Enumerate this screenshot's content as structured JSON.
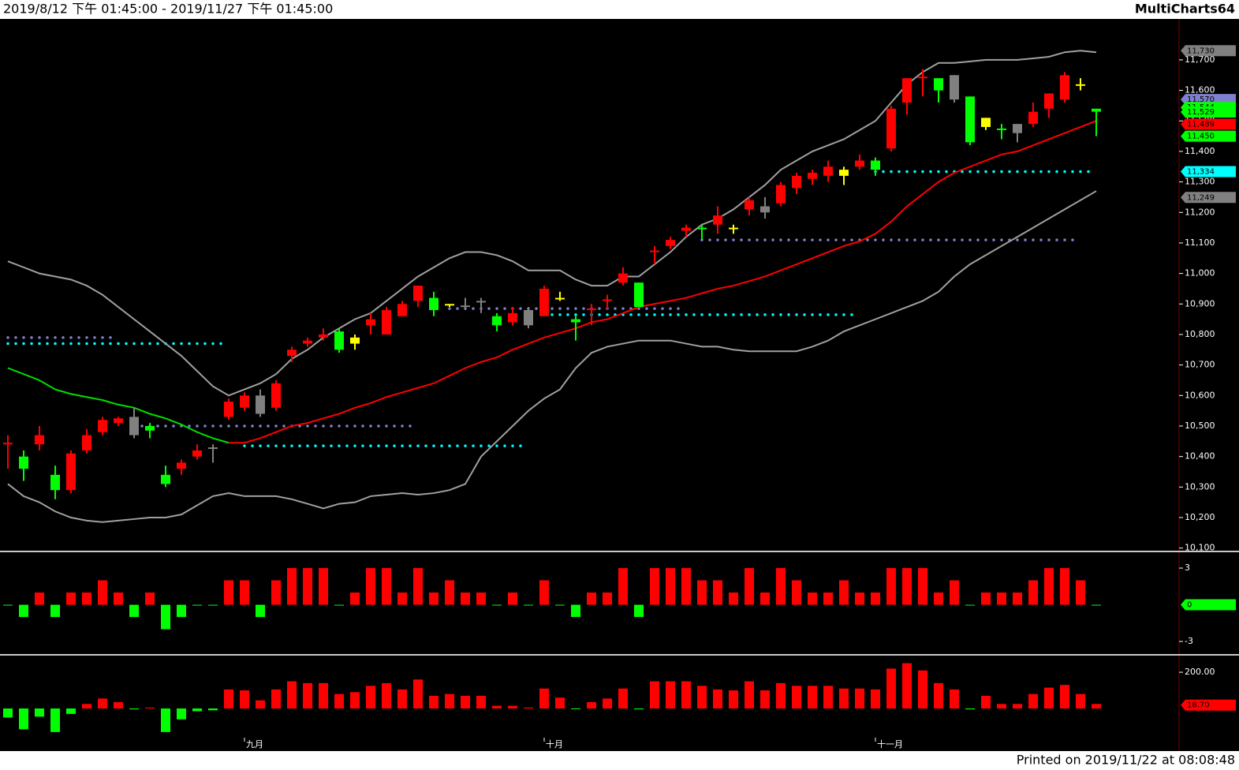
{
  "header": {
    "range": "2019/8/12 下午 01:45:00 - 2019/11/27 下午 01:45:00",
    "app": "MultiCharts64"
  },
  "footer": "Printed on 2019/11/22 at 08:08:48",
  "chart_data": [
    {
      "type": "candlestick",
      "ylim": [
        10094,
        11829
      ],
      "yticks": [
        {
          "value": 10100,
          "label": "10,100"
        },
        {
          "value": 10200,
          "label": "10,200"
        },
        {
          "value": 10300,
          "label": "10,300"
        },
        {
          "value": 10400,
          "label": "10,400"
        },
        {
          "value": 10500,
          "label": "10,500"
        },
        {
          "value": 10600,
          "label": "10,600"
        },
        {
          "value": 10700,
          "label": "10,700"
        },
        {
          "value": 10800,
          "label": "10,800"
        },
        {
          "value": 10900,
          "label": "10,900"
        },
        {
          "value": 11000,
          "label": "11,000"
        },
        {
          "value": 11100,
          "label": "11,100"
        },
        {
          "value": 11200,
          "label": "11,200"
        },
        {
          "value": 11300,
          "label": "11,300"
        },
        {
          "value": 11400,
          "label": "11,400"
        },
        {
          "value": 11500,
          "label": "11,500"
        },
        {
          "value": 11600,
          "label": "11,600"
        },
        {
          "value": 11700,
          "label": "11,700"
        }
      ],
      "open": [
        10440,
        10400,
        10440,
        10340,
        10290,
        10420,
        10480,
        10510,
        10530,
        10500,
        10340,
        10360,
        10400,
        10430,
        10530,
        10560,
        10600,
        10560,
        10730,
        10770,
        10790,
        10810,
        10790,
        10830,
        10800,
        10860,
        10910,
        10920,
        10900,
        10895,
        10910,
        10860,
        10840,
        10880,
        10860,
        10920,
        10850,
        10880,
        10910,
        10970,
        10970,
        11070,
        11090,
        11140,
        11150,
        11160,
        11150,
        11210,
        11220,
        11230,
        11280,
        11310,
        11320,
        11340,
        11350,
        11370,
        11410,
        11560,
        11640,
        11640,
        11650,
        11580,
        11510,
        11475,
        11490,
        11490,
        11540,
        11570,
        11620,
        11540
      ],
      "high": [
        10470,
        10420,
        10500,
        10370,
        10420,
        10490,
        10530,
        10530,
        10560,
        10510,
        10370,
        10390,
        10440,
        10440,
        10590,
        10610,
        10620,
        10650,
        10760,
        10790,
        10820,
        10820,
        10800,
        10870,
        10890,
        10910,
        10960,
        10940,
        10900,
        10920,
        10920,
        10870,
        10890,
        10890,
        10960,
        10940,
        10860,
        10900,
        10930,
        11020,
        10970,
        11090,
        11120,
        11160,
        11160,
        11220,
        11160,
        11250,
        11250,
        11300,
        11330,
        11340,
        11370,
        11350,
        11390,
        11380,
        11550,
        11640,
        11670,
        11640,
        11650,
        11580,
        11510,
        11490,
        11490,
        11560,
        11590,
        11660,
        11640,
        11540
      ],
      "low": [
        10360,
        10320,
        10420,
        10260,
        10280,
        10410,
        10470,
        10500,
        10460,
        10460,
        10300,
        10340,
        10390,
        10380,
        10520,
        10550,
        10530,
        10550,
        10710,
        10760,
        10780,
        10740,
        10750,
        10800,
        10800,
        10860,
        10890,
        10860,
        10890,
        10880,
        10870,
        10810,
        10830,
        10820,
        10860,
        10910,
        10780,
        10830,
        10880,
        10960,
        10890,
        11030,
        11080,
        11120,
        11110,
        11130,
        11130,
        11190,
        11180,
        11220,
        11260,
        11290,
        11300,
        11290,
        11340,
        11320,
        11400,
        11520,
        11580,
        11560,
        11560,
        11420,
        11470,
        11440,
        11430,
        11480,
        11510,
        11560,
        11600,
        11450
      ],
      "close": [
        10445,
        10360,
        10470,
        10290,
        10410,
        10470,
        10520,
        10525,
        10470,
        10485,
        10310,
        10380,
        10420,
        10425,
        10580,
        10600,
        10540,
        10640,
        10750,
        10780,
        10800,
        10750,
        10770,
        10850,
        10880,
        10900,
        10960,
        10880,
        10895,
        10890,
        10905,
        10830,
        10870,
        10830,
        10950,
        10915,
        10840,
        10885,
        10915,
        11000,
        10890,
        11075,
        11110,
        11150,
        11145,
        11190,
        11145,
        11240,
        11200,
        11290,
        11320,
        11330,
        11350,
        11320,
        11370,
        11340,
        11540,
        11640,
        11645,
        11600,
        11570,
        11430,
        11480,
        11470,
        11460,
        11530,
        11590,
        11650,
        11615,
        11530
      ],
      "colors": [
        "#ff0000",
        "#00ff00",
        "#ff0000",
        "#00ff00",
        "#ff0000",
        "#ff0000",
        "#ff0000",
        "#ff0000",
        "#808080",
        "#00ff00",
        "#00ff00",
        "#ff0000",
        "#ff0000",
        "#808080",
        "#ff0000",
        "#ff0000",
        "#808080",
        "#ff0000",
        "#ff0000",
        "#ff0000",
        "#ff0000",
        "#00ff00",
        "#ffff00",
        "#ff0000",
        "#ff0000",
        "#ff0000",
        "#ff0000",
        "#00ff00",
        "#ffff00",
        "#808080",
        "#808080",
        "#00ff00",
        "#ff0000",
        "#808080",
        "#ff0000",
        "#ffff00",
        "#00ff00",
        "#ff0000",
        "#ff0000",
        "#ff0000",
        "#00ff00",
        "#ff0000",
        "#ff0000",
        "#ff0000",
        "#00ff00",
        "#ff0000",
        "#ffff00",
        "#ff0000",
        "#808080",
        "#ff0000",
        "#ff0000",
        "#ff0000",
        "#ff0000",
        "#ffff00",
        "#ff0000",
        "#00ff00",
        "#ff0000",
        "#ff0000",
        "#ff0000",
        "#00ff00",
        "#808080",
        "#00ff00",
        "#ffff00",
        "#00ff00",
        "#808080",
        "#ff0000",
        "#ff0000",
        "#ff0000",
        "#ffff00",
        "#00ff00"
      ],
      "series": [
        {
          "color": "#a0a0a0",
          "values": [
            11040,
            11020,
            11000,
            10990,
            10980,
            10960,
            10930,
            10890,
            10850,
            10810,
            10770,
            10730,
            10680,
            10630,
            10600,
            10620,
            10640,
            10670,
            10720,
            10750,
            10790,
            10820,
            10850,
            10870,
            10910,
            10950,
            10990,
            11020,
            11050,
            11070,
            11070,
            11060,
            11040,
            11010,
            11010,
            11010,
            10980,
            10960,
            10960,
            10990,
            10990,
            11030,
            11070,
            11120,
            11160,
            11180,
            11210,
            11250,
            11290,
            11340,
            11370,
            11400,
            11420,
            11440,
            11470,
            11500,
            11560,
            11620,
            11660,
            11690,
            11690,
            11695,
            11700,
            11700,
            11700,
            11705,
            11710,
            11725,
            11730,
            11725
          ]
        },
        {
          "color": "#a0a0a0",
          "values": [
            10310,
            10270,
            10250,
            10220,
            10200,
            10190,
            10185,
            10190,
            10195,
            10200,
            10200,
            10210,
            10240,
            10270,
            10280,
            10270,
            10270,
            10270,
            10260,
            10245,
            10230,
            10245,
            10250,
            10270,
            10275,
            10280,
            10275,
            10280,
            10290,
            10310,
            10400,
            10450,
            10500,
            10550,
            10590,
            10620,
            10690,
            10740,
            10760,
            10770,
            10780,
            10780,
            10780,
            10770,
            10760,
            10760,
            10750,
            10745,
            10745,
            10745,
            10745,
            10760,
            10780,
            10810,
            10830,
            10850,
            10870,
            10890,
            10910,
            10940,
            10990,
            11030,
            11060,
            11090,
            11120,
            11150,
            11180,
            11210,
            11240,
            11270
          ]
        },
        {
          "color": "#00e000",
          "values": [
            10690,
            10670,
            10650,
            10620,
            10605,
            10595,
            10585,
            10570,
            10560,
            10540,
            10525,
            10505,
            10480,
            10460,
            10445,
            null,
            null,
            null,
            null,
            null,
            null,
            null,
            null,
            null,
            null,
            null,
            null,
            null,
            null,
            null,
            null,
            null,
            null,
            null,
            null,
            null,
            null,
            null,
            null,
            null,
            null,
            null,
            null,
            null,
            null,
            null,
            null,
            null,
            null,
            null,
            null,
            null,
            null,
            null,
            null,
            null,
            null,
            null,
            null,
            null,
            null,
            null,
            null,
            null,
            null,
            null,
            null,
            null,
            null,
            null
          ]
        },
        {
          "color": "#ff0000",
          "values": [
            null,
            null,
            null,
            null,
            null,
            null,
            null,
            null,
            null,
            null,
            null,
            null,
            null,
            null,
            10445,
            10445,
            10460,
            10480,
            10500,
            10510,
            10525,
            10540,
            10560,
            10575,
            10595,
            10610,
            10625,
            10640,
            10665,
            10690,
            10710,
            10725,
            10750,
            10770,
            10790,
            10805,
            10820,
            10840,
            10850,
            10870,
            10890,
            10900,
            10910,
            10920,
            10935,
            10950,
            10960,
            10975,
            10990,
            11010,
            11030,
            11050,
            11070,
            11090,
            11105,
            11130,
            11170,
            11220,
            11260,
            11300,
            11330,
            11350,
            11370,
            11390,
            11400,
            11420,
            11440,
            11460,
            11480,
            11500
          ]
        }
      ],
      "levels": [
        {
          "value": 10790,
          "from": 0,
          "to": 7,
          "color": "#8080d0"
        },
        {
          "value": 10770,
          "from": 0,
          "to": 14,
          "color": "#00ffff"
        },
        {
          "value": 10500,
          "from": 8,
          "to": 26,
          "color": "#8080d0"
        },
        {
          "value": 10435,
          "from": 15,
          "to": 33,
          "color": "#00ffff"
        },
        {
          "value": 10885,
          "from": 28,
          "to": 43,
          "color": "#8080d0"
        },
        {
          "value": 10865,
          "from": 34,
          "to": 54,
          "color": "#00ffff"
        },
        {
          "value": 11110,
          "from": 44,
          "to": 68,
          "color": "#8080d0"
        },
        {
          "value": 11334,
          "from": 55,
          "to": 69,
          "color": "#00ffff"
        }
      ],
      "tags": [
        {
          "value": 11730,
          "label": "11,730",
          "color": "#808080"
        },
        {
          "value": 11570,
          "label": "11,570",
          "color": "#8080d0"
        },
        {
          "value": 11544,
          "label": "11,544",
          "color": "#00ff00"
        },
        {
          "value": 11529,
          "label": "11,529",
          "color": "#00ff00"
        },
        {
          "value": 11489,
          "label": "11,489",
          "color": "#ff0000"
        },
        {
          "value": 11450,
          "label": "11,450",
          "color": "#00ff00"
        },
        {
          "value": 11334,
          "label": "11,334",
          "color": "#00ffff"
        },
        {
          "value": 11249,
          "label": "11,249",
          "color": "#808080"
        }
      ]
    },
    {
      "type": "bar",
      "ylim": [
        -3.9,
        4.1
      ],
      "yticks": [
        3,
        -3
      ],
      "values": [
        0,
        -1,
        1,
        -1,
        1,
        1,
        2,
        1,
        -1,
        1,
        -2,
        -1,
        0,
        0,
        2,
        2,
        -1,
        2,
        3,
        3,
        3,
        0,
        1,
        3,
        3,
        1,
        3,
        1,
        2,
        1,
        1,
        0,
        1,
        0,
        2,
        0,
        -1,
        1,
        1,
        3,
        -1,
        3,
        3,
        3,
        2,
        2,
        1,
        3,
        1,
        3,
        2,
        1,
        1,
        2,
        1,
        1,
        3,
        3,
        3,
        1,
        2,
        0,
        1,
        1,
        1,
        2,
        3,
        3,
        2,
        0
      ],
      "up_color": "#ff0000",
      "down_color": "#00ff00",
      "tags": [
        {
          "value": 0,
          "color": "#00ff00"
        }
      ]
    },
    {
      "type": "bar",
      "ylim": [
        -161,
        283
      ],
      "yticks": [
        {
          "value": 200,
          "label": "200.00"
        }
      ],
      "values": [
        -50,
        -115,
        -45,
        -130,
        -30,
        25,
        55,
        35,
        -5,
        5,
        -130,
        -60,
        -15,
        -10,
        105,
        100,
        45,
        105,
        150,
        140,
        140,
        80,
        90,
        125,
        140,
        105,
        160,
        70,
        80,
        70,
        70,
        15,
        15,
        5,
        110,
        60,
        0,
        35,
        55,
        110,
        -5,
        150,
        150,
        150,
        125,
        105,
        100,
        150,
        100,
        140,
        125,
        125,
        125,
        110,
        110,
        105,
        220,
        250,
        210,
        140,
        105,
        -5,
        70,
        25,
        25,
        80,
        115,
        130,
        80,
        25
      ],
      "up_color": "#ff0000",
      "down_color": "#00ff00",
      "tags": [
        {
          "value": 18.7,
          "label": "18.70",
          "color": "#ff0000"
        }
      ],
      "xticks": [
        {
          "value": 15,
          "label": "九月"
        },
        {
          "value": 34,
          "label": "十月"
        },
        {
          "value": 55,
          "label": "十一月"
        }
      ]
    }
  ]
}
